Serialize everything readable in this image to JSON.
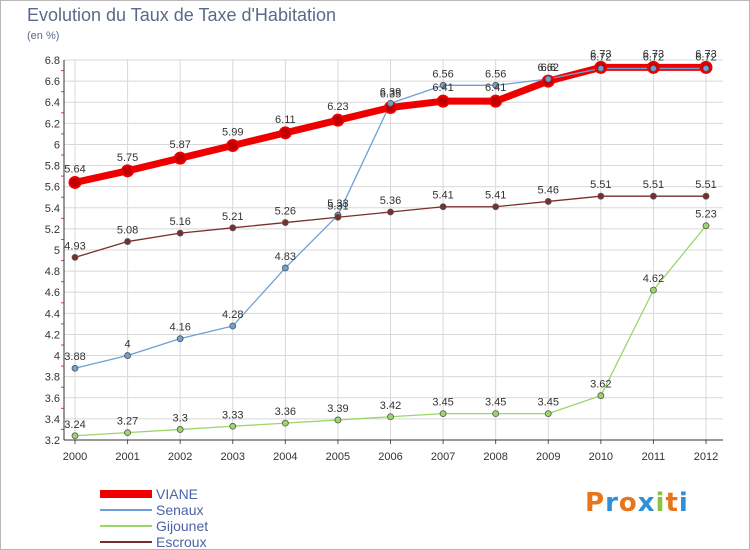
{
  "title": "Evolution du Taux de Taxe d'Habitation",
  "subtitle": "(en %)",
  "logo": {
    "letters": [
      "P",
      "r",
      "o",
      "x",
      "i",
      "t",
      "i"
    ],
    "colors": [
      "#e8751a",
      "#2e8fd8",
      "#e8751a",
      "#2e8fd8",
      "#8ac43f",
      "#e8751a",
      "#2e8fd8"
    ]
  },
  "chart_data": {
    "type": "line",
    "title": "Evolution du Taux de Taxe d'Habitation",
    "ylabel": "(en %)",
    "xlabel": "",
    "ylim": [
      3.2,
      6.8
    ],
    "yticks": [
      "3.2",
      "3.4",
      "3.6",
      "3.8",
      "4",
      "4.2",
      "4.4",
      "4.6",
      "4.8",
      "5",
      "5.2",
      "5.4",
      "5.6",
      "5.8",
      "6",
      "6.2",
      "6.4",
      "6.6",
      "6.8"
    ],
    "x": [
      "2000",
      "2001",
      "2002",
      "2003",
      "2004",
      "2005",
      "2006",
      "2007",
      "2008",
      "2009",
      "2010",
      "2011",
      "2012"
    ],
    "grid": true,
    "legend_position": "bottom-left",
    "series": [
      {
        "name": "VIANE",
        "color": "#ee0000",
        "width": 7,
        "values": [
          5.64,
          5.75,
          5.87,
          5.99,
          6.11,
          6.23,
          6.35,
          6.41,
          6.41,
          6.6,
          6.73,
          6.73,
          6.73
        ],
        "labels": [
          "5.64",
          "5.75",
          "5.87",
          "5.99",
          "6.11",
          "6.23",
          "6.35",
          "6.41",
          "6.41",
          "6.6",
          "6.73",
          "6.73",
          "6.73"
        ]
      },
      {
        "name": "Senaux",
        "color": "#6f9fd6",
        "width": 1.3,
        "values": [
          3.88,
          4.0,
          4.16,
          4.28,
          4.83,
          5.33,
          6.39,
          6.56,
          6.56,
          6.62,
          6.72,
          6.72,
          6.72
        ],
        "labels": [
          "3.88",
          "4",
          "4.16",
          "4.28",
          "4.83",
          "5.33",
          "6.39",
          "6.56",
          "6.56",
          "6.62",
          "6.72",
          "6.72",
          "6.72"
        ]
      },
      {
        "name": "Gijounet",
        "color": "#9ad66a",
        "width": 1.3,
        "values": [
          3.24,
          3.27,
          3.3,
          3.33,
          3.36,
          3.39,
          3.42,
          3.45,
          3.45,
          3.45,
          3.62,
          4.62,
          5.23
        ],
        "labels": [
          "3.24",
          "3.27",
          "3.3",
          "3.33",
          "3.36",
          "3.39",
          "3.42",
          "3.45",
          "3.45",
          "3.45",
          "3.62",
          "4.62",
          "5.23"
        ]
      },
      {
        "name": "Escroux",
        "color": "#7a2e2e",
        "width": 1.3,
        "values": [
          4.93,
          5.08,
          5.16,
          5.21,
          5.26,
          5.31,
          5.36,
          5.41,
          5.41,
          5.46,
          5.51,
          5.51,
          5.51
        ],
        "labels": [
          "4.93",
          "5.08",
          "5.16",
          "5.21",
          "5.26",
          "5.31",
          "5.36",
          "5.41",
          "5.41",
          "5.46",
          "5.51",
          "5.51",
          "5.51"
        ]
      }
    ]
  },
  "legend": [
    {
      "label": "VIANE",
      "color": "#ee0000",
      "thick": true
    },
    {
      "label": "Senaux",
      "color": "#6f9fd6",
      "thick": false
    },
    {
      "label": "Gijounet",
      "color": "#9ad66a",
      "thick": false
    },
    {
      "label": "Escroux",
      "color": "#7a2e2e",
      "thick": false
    }
  ]
}
